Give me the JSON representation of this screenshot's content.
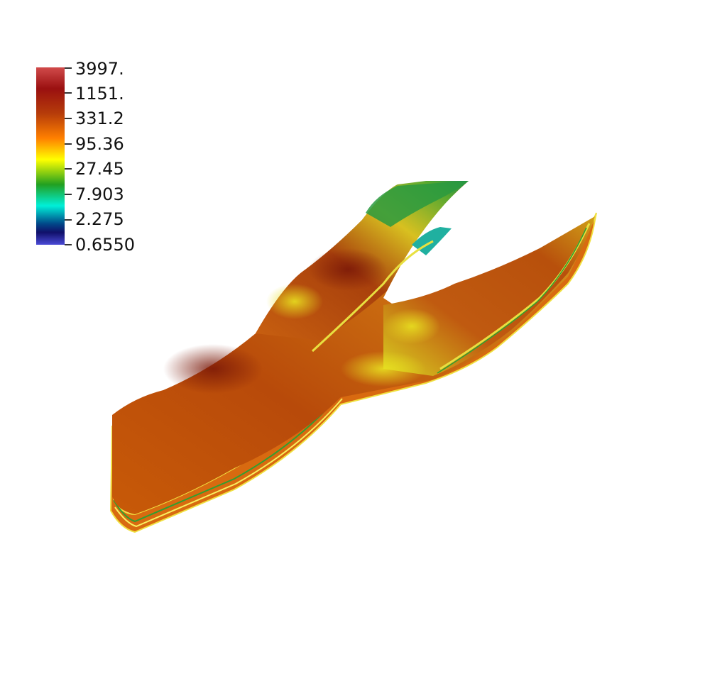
{
  "colorbar": {
    "ticks": [
      {
        "label": "3997."
      },
      {
        "label": "1151."
      },
      {
        "label": "331.2"
      },
      {
        "label": "95.36"
      },
      {
        "label": "27.45"
      },
      {
        "label": "7.903"
      },
      {
        "label": "2.275"
      },
      {
        "label": "0.6550"
      }
    ],
    "colors": [
      "#d14a4a",
      "#9a1010",
      "#b63c0a",
      "#ff8000",
      "#ffff00",
      "#22a020",
      "#00f0d8",
      "#004a8a",
      "#10106a",
      "#4a4ad6"
    ]
  }
}
